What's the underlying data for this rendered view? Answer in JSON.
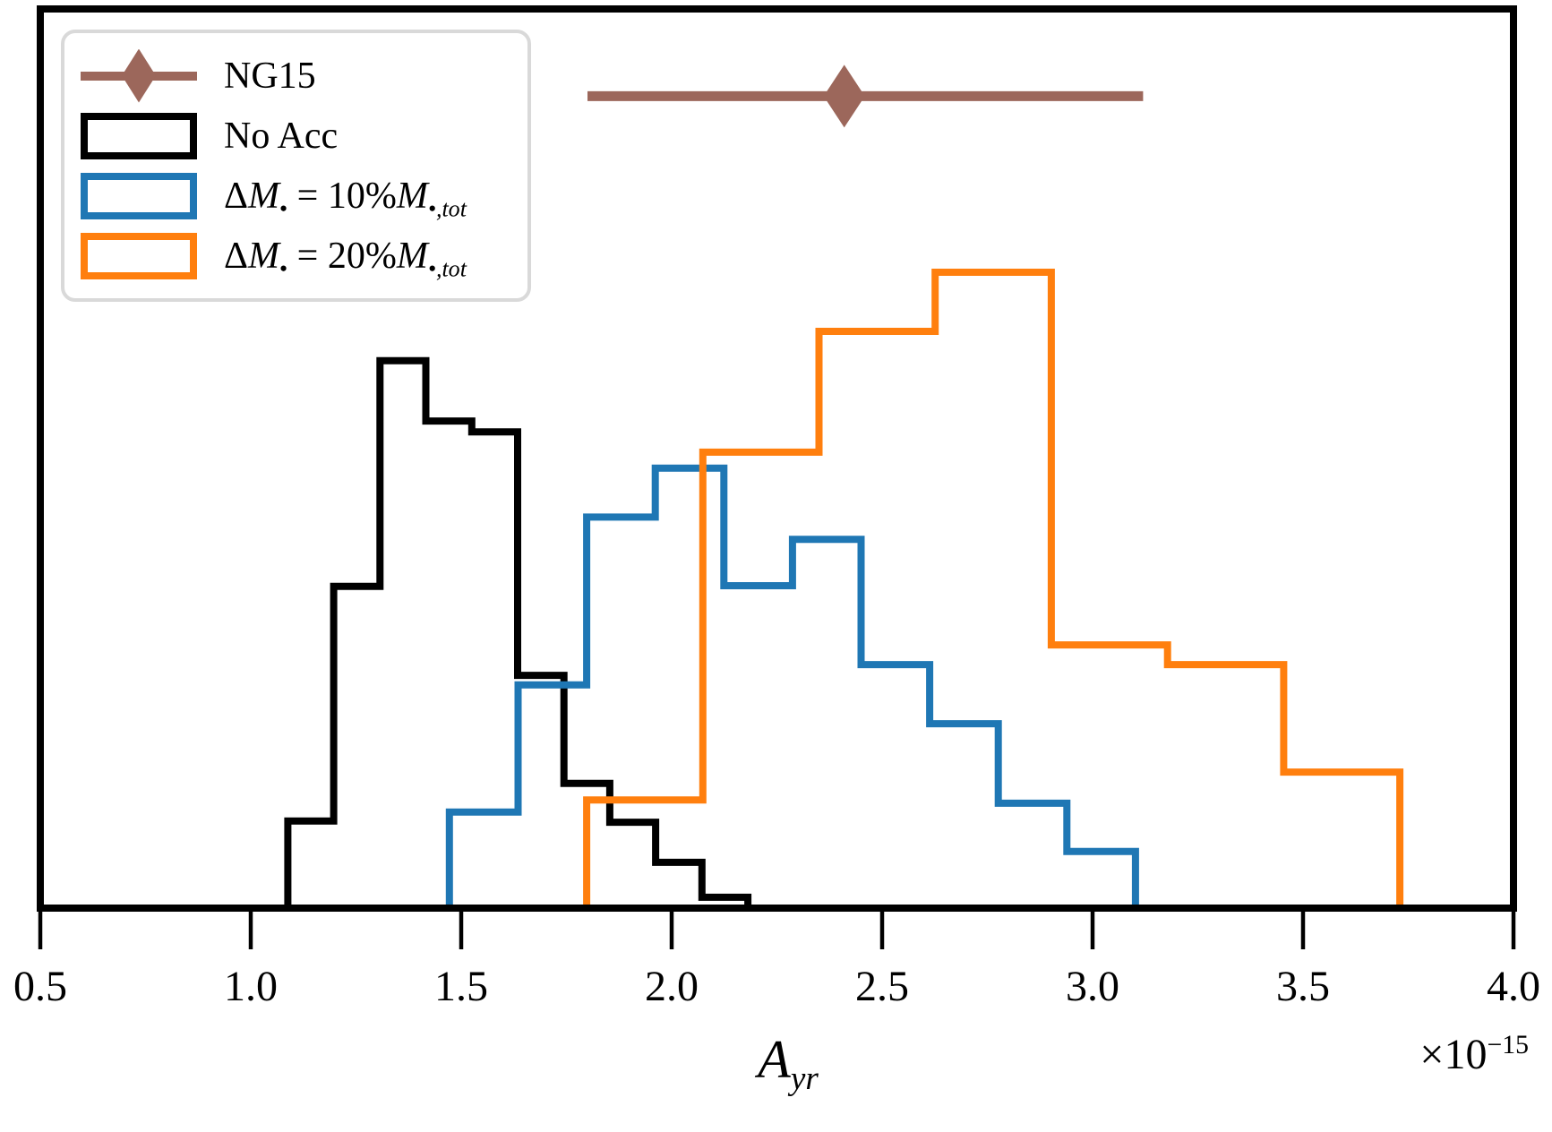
{
  "figure": {
    "background": "#ffffff",
    "axes_border_color": "#000000"
  },
  "chart_data": {
    "type": "bar",
    "subtype": "step-histogram-overlay",
    "title": "",
    "xlabel_plain": "A_yr",
    "xlabel_segments": [
      {
        "text": "A",
        "italic": true
      },
      {
        "text": "yr",
        "sub": true,
        "italic": true
      }
    ],
    "x_offset_plain": "×10⁻¹⁵",
    "x_offset_segments": [
      {
        "text": "×10"
      },
      {
        "text": "−15",
        "sup": true
      }
    ],
    "xlim": [
      0.5,
      4.0
    ],
    "ylim_rel": [
      0,
      1.414
    ],
    "grid": false,
    "y_tick_labels_shown": false,
    "legend_position": "upper-left",
    "x_ticks": [
      {
        "value": 0.5,
        "label": "0.5"
      },
      {
        "value": 1.0,
        "label": "1.0"
      },
      {
        "value": 1.5,
        "label": "1.5"
      },
      {
        "value": 2.0,
        "label": "2.0"
      },
      {
        "value": 2.5,
        "label": "2.5"
      },
      {
        "value": 3.0,
        "label": "3.0"
      },
      {
        "value": 3.5,
        "label": "3.5"
      },
      {
        "value": 4.0,
        "label": "4.0"
      }
    ],
    "series": [
      {
        "name": "No Acc",
        "color": "#000000",
        "bin_edges": [
          1.088,
          1.197,
          1.307,
          1.416,
          1.525,
          1.634,
          1.744,
          1.853,
          1.962,
          2.072,
          2.181
        ],
        "heights_rel": [
          0.137,
          0.506,
          0.861,
          0.766,
          0.749,
          0.366,
          0.196,
          0.135,
          0.072,
          0.017
        ]
      },
      {
        "name": "ΔM• = 10%M•,tot",
        "color": "#1f77b4",
        "bin_edges": [
          1.472,
          1.635,
          1.798,
          1.961,
          2.124,
          2.287,
          2.45,
          2.613,
          2.776,
          2.939,
          3.102
        ],
        "heights_rel": [
          0.151,
          0.351,
          0.615,
          0.692,
          0.507,
          0.58,
          0.383,
          0.29,
          0.165,
          0.089
        ]
      },
      {
        "name": "ΔM• = 20%M•,tot",
        "color": "#ff7f0e",
        "bin_edges": [
          1.798,
          2.074,
          2.35,
          2.626,
          2.902,
          3.178,
          3.454,
          3.73
        ],
        "heights_rel": [
          0.17,
          0.717,
          0.907,
          1.0,
          0.414,
          0.383,
          0.214
        ]
      }
    ],
    "errorbar": {
      "name": "NG15",
      "color": "#9c675b",
      "marker": "thin-diamond",
      "x_center": 2.41,
      "x_low": 1.8,
      "x_high": 3.12,
      "y_frac_above_baseline": 0.903
    }
  },
  "legend": {
    "items": [
      {
        "swatch": "errorbar",
        "color": "#9c675b",
        "label_plain": "NG15",
        "label_segments": [
          {
            "text": "NG15"
          }
        ]
      },
      {
        "swatch": "rect",
        "color": "#000000",
        "label_plain": "No Acc",
        "label_segments": [
          {
            "text": "No Acc"
          }
        ]
      },
      {
        "swatch": "rect",
        "color": "#1f77b4",
        "label_plain": "ΔM• = 10%M•,tot",
        "label_segments": [
          {
            "text": "Δ"
          },
          {
            "text": "M",
            "italic": true
          },
          {
            "text": "•",
            "sub": true
          },
          {
            "text": " = 10%"
          },
          {
            "text": "M",
            "italic": true
          },
          {
            "text": "•,tot",
            "sub": true,
            "italic": true
          }
        ]
      },
      {
        "swatch": "rect",
        "color": "#ff7f0e",
        "label_plain": "ΔM• = 20%M•,tot",
        "label_segments": [
          {
            "text": "Δ"
          },
          {
            "text": "M",
            "italic": true
          },
          {
            "text": "•",
            "sub": true
          },
          {
            "text": " = 20%"
          },
          {
            "text": "M",
            "italic": true
          },
          {
            "text": "•,tot",
            "sub": true,
            "italic": true
          }
        ]
      }
    ]
  }
}
